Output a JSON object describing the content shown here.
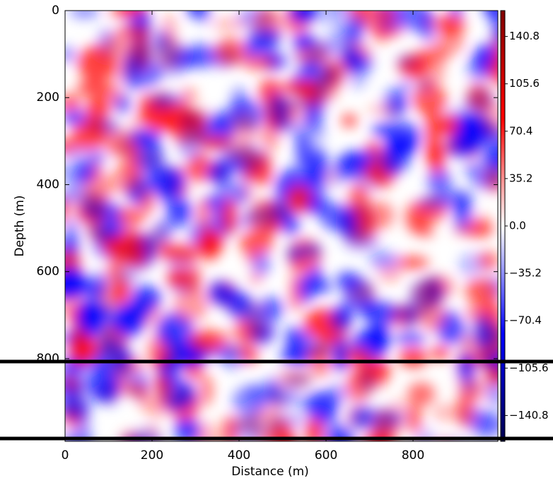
{
  "chart_data": {
    "type": "heatmap",
    "xlabel": "Distance (m)",
    "ylabel": "Depth (m)",
    "xlim": [
      0,
      995
    ],
    "xticks": [
      0,
      200,
      400,
      600,
      800
    ],
    "ylim": [
      990,
      0
    ],
    "yticks": [
      0,
      200,
      400,
      600,
      800
    ],
    "colormap": [
      "#00004c",
      "#0000ff",
      "#ffffff",
      "#ff0000",
      "#800000"
    ],
    "clim": [
      -160,
      160
    ],
    "cticks": [
      140.8,
      105.6,
      70.4,
      35.2,
      {
        "value": 0,
        "label": "0.0"
      },
      {
        "value": -35.2,
        "label": "−35.2"
      },
      {
        "value": -70.4,
        "label": "−70.4"
      },
      {
        "value": -105.6,
        "label": "−105.6"
      },
      {
        "value": -140.8,
        "label": "−140.8"
      }
    ]
  }
}
